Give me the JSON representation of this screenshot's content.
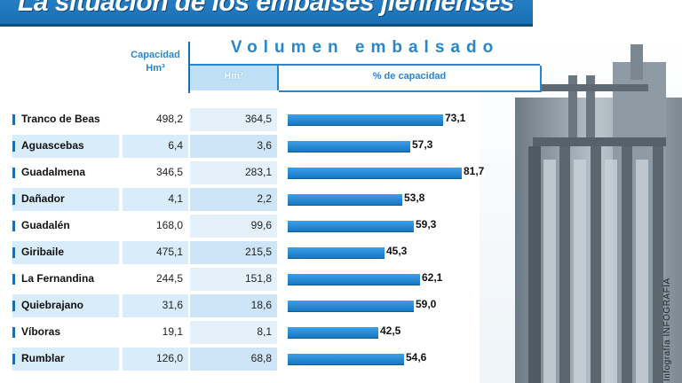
{
  "title": "La situación de los embalses jiennenses",
  "colors": {
    "accent": "#2a86cc",
    "bar": "#1877c4",
    "row_alt": "#d9ecf9"
  },
  "header": {
    "capacity_label": "Capacidad",
    "capacity_unit": "Hm³",
    "volume_label": "Volumen embalsado",
    "volume_unit": "Hm³",
    "percent_label": "% de capacidad"
  },
  "credit": "Infografía INFOGRAFÍA",
  "chart_data": {
    "type": "bar",
    "title": "La situación de los embalses jiennenses",
    "xlabel": "",
    "ylabel": "% de capacidad",
    "ylim": [
      0,
      100
    ],
    "categories": [
      "Tranco de Beas",
      "Aguascebas",
      "Guadalmena",
      "Dañador",
      "Guadalén",
      "Giribaile",
      "La Fernandina",
      "Quiebrajano",
      "Víboras",
      "Rumblar"
    ],
    "capacity_hm3": [
      "498,2",
      "6,4",
      "346,5",
      "4,1",
      "168,0",
      "475,1",
      "244,5",
      "31,6",
      "19,1",
      "126,0"
    ],
    "volume_hm3": [
      "364,5",
      "3,6",
      "283,1",
      "2,2",
      "99,6",
      "215,5",
      "151,8",
      "18,6",
      "8,1",
      "68,8"
    ],
    "percent_labels": [
      "73,1",
      "57,3",
      "81,7",
      "53,8",
      "59,3",
      "45,3",
      "62,1",
      "59,0",
      "42,5",
      "54,6"
    ],
    "values": [
      73.1,
      57.3,
      81.7,
      53.8,
      59.3,
      45.3,
      62.1,
      59.0,
      42.5,
      54.6
    ]
  }
}
